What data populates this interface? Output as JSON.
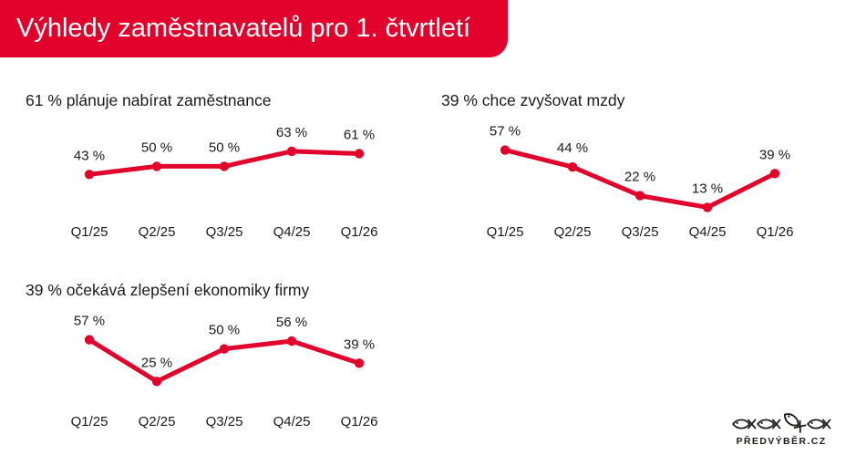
{
  "header": {
    "title": "Výhledy zaměstnavatelů pro 1. čtvrtletí",
    "bg_color": "#e2032d",
    "text_color": "#ffffff"
  },
  "chart_data": [
    {
      "type": "line",
      "title": "61 % plánuje nabírat zaměstnance",
      "categories": [
        "Q1/25",
        "Q2/25",
        "Q3/25",
        "Q4/25",
        "Q1/26"
      ],
      "values": [
        43,
        50,
        50,
        63,
        61
      ],
      "label_suffix": " %",
      "line_color": "#e2032d",
      "markers": true,
      "data_labels": "above",
      "grid": false,
      "axes": "hidden",
      "ylim": [
        0,
        118
      ]
    },
    {
      "type": "line",
      "title": "39 % chce zvyšovat mzdy",
      "categories": [
        "Q1/25",
        "Q2/25",
        "Q3/25",
        "Q4/25",
        "Q1/26"
      ],
      "values": [
        57,
        44,
        22,
        13,
        39
      ],
      "label_suffix": " %",
      "line_color": "#e2032d",
      "markers": true,
      "data_labels": "above",
      "grid": false,
      "axes": "hidden",
      "ylim": [
        0,
        105
      ]
    },
    {
      "type": "line",
      "title": "39 % očekává zlepšení ekonomiky firmy",
      "categories": [
        "Q1/25",
        "Q2/25",
        "Q3/25",
        "Q4/25",
        "Q1/26"
      ],
      "values": [
        57,
        25,
        50,
        56,
        39
      ],
      "label_suffix": " %",
      "line_color": "#e2032d",
      "markers": true,
      "data_labels": "above",
      "grid": false,
      "axes": "hidden",
      "ylim": [
        0,
        105
      ]
    }
  ],
  "logo": {
    "text": "PŘEDVÝBĚR.CZ",
    "icon": "four-fish-logo",
    "color": "#1d1d1b"
  }
}
